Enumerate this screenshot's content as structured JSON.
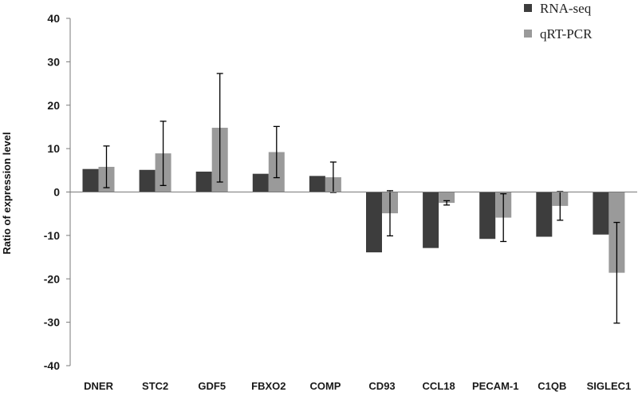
{
  "chart_data": {
    "type": "bar",
    "title": "",
    "xlabel": "",
    "ylabel": "Ratio of expression level",
    "ylim": [
      -40,
      40
    ],
    "yticks": [
      40,
      30,
      20,
      10,
      0,
      -10,
      -20,
      -30,
      -40
    ],
    "grid": false,
    "legend_position": "top-right",
    "categories": [
      "DNER",
      "STC2",
      "GDF5",
      "FBXO2",
      "COMP",
      "CD93",
      "CCL18",
      "PECAM-1",
      "C1QB",
      "SIGLEC1"
    ],
    "series": [
      {
        "name": "RNA-seq",
        "color": "#3d3d3d",
        "values": [
          5.3,
          5.1,
          4.7,
          4.2,
          3.7,
          -13.9,
          -12.9,
          -10.8,
          -10.3,
          -9.8
        ],
        "error": null
      },
      {
        "name": "qRT-PCR",
        "color": "#9a9a9a",
        "values": [
          5.8,
          8.9,
          14.8,
          9.2,
          3.4,
          -4.9,
          -2.5,
          -5.9,
          -3.2,
          -18.6
        ],
        "error": [
          4.8,
          7.4,
          12.5,
          5.9,
          3.5,
          5.2,
          0.5,
          5.5,
          3.3,
          11.6
        ]
      }
    ]
  }
}
